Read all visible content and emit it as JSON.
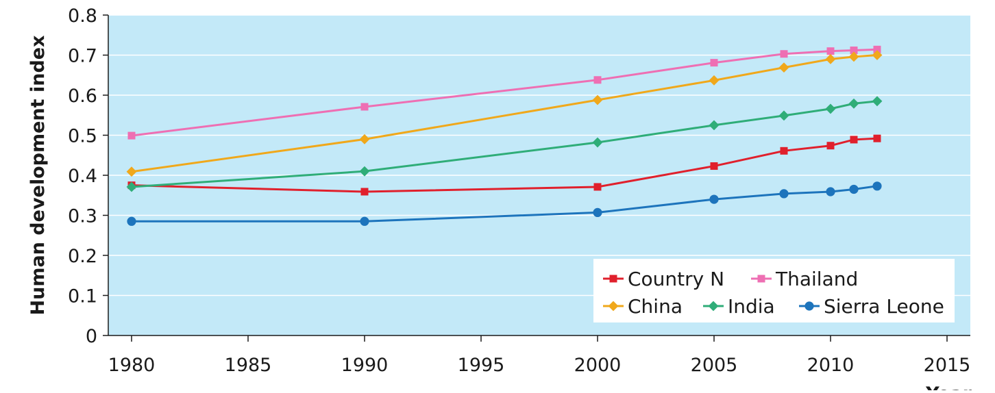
{
  "chart_data": {
    "type": "line",
    "ylabel": "Human development index",
    "xlabel": "Year",
    "xlim": [
      1979,
      2016
    ],
    "ylim": [
      0,
      0.8
    ],
    "x_ticks": [
      1980,
      1985,
      1990,
      1995,
      2000,
      2005,
      2010,
      2015
    ],
    "y_ticks": [
      0,
      0.1,
      0.2,
      0.3,
      0.4,
      0.5,
      0.6,
      0.7,
      0.8
    ],
    "y_tick_labels": [
      "0",
      "0.1",
      "0.2",
      "0.3",
      "0.4",
      "0.5",
      "0.6",
      "0.7",
      "0.8"
    ],
    "grid": "horizontal",
    "background_color": "#c3e9f8",
    "legend_position": "bottom-right",
    "x": [
      1980,
      1990,
      2000,
      2005,
      2008,
      2010,
      2011,
      2012
    ],
    "series": [
      {
        "name": "Country N",
        "color": "#e0202c",
        "marker": "square",
        "values": [
          0.375,
          0.359,
          0.371,
          0.423,
          0.461,
          0.474,
          0.489,
          0.492
        ]
      },
      {
        "name": "Thailand",
        "color": "#ee6fb3",
        "marker": "square",
        "values": [
          0.499,
          0.571,
          0.638,
          0.681,
          0.703,
          0.71,
          0.712,
          0.714
        ]
      },
      {
        "name": "China",
        "color": "#f0a81b",
        "marker": "diamond",
        "values": [
          0.409,
          0.49,
          0.588,
          0.637,
          0.669,
          0.69,
          0.696,
          0.7
        ]
      },
      {
        "name": "India",
        "color": "#2fad78",
        "marker": "diamond",
        "values": [
          0.371,
          0.41,
          0.482,
          0.525,
          0.549,
          0.566,
          0.579,
          0.585
        ]
      },
      {
        "name": "Sierra Leone",
        "color": "#1d74bc",
        "marker": "circle",
        "values": [
          0.285,
          0.285,
          0.307,
          0.34,
          0.354,
          0.359,
          0.365,
          0.373
        ]
      }
    ]
  }
}
